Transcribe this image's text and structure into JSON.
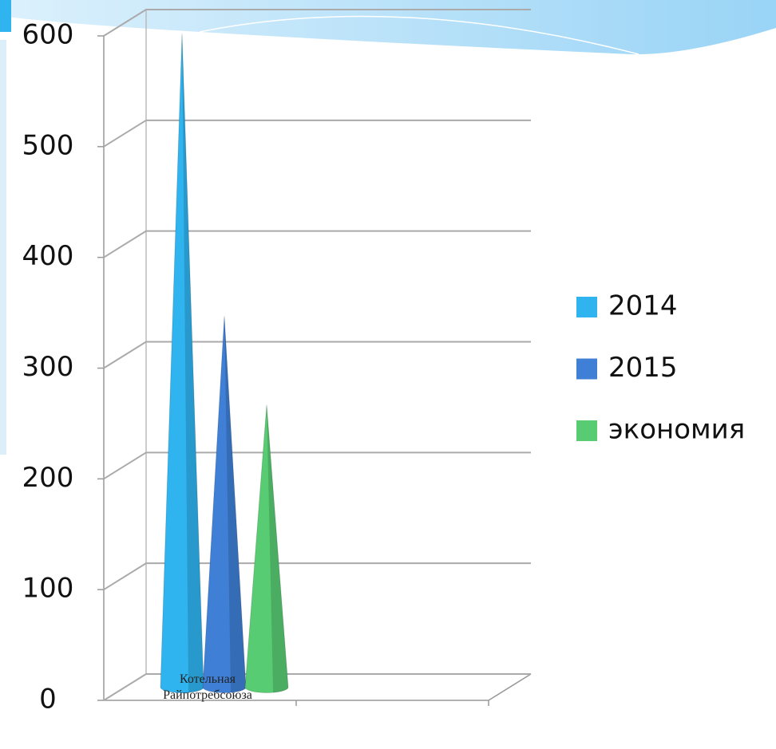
{
  "chart_data": {
    "type": "cone",
    "categories": [
      "Котельная Райпотребсоюза"
    ],
    "series": [
      {
        "name": "2014",
        "color": "#2fb4f0",
        "values": [
          590
        ]
      },
      {
        "name": "2015",
        "color": "#3f7fd6",
        "values": [
          335
        ]
      },
      {
        "name": "экономия",
        "color": "#58cc72",
        "values": [
          255
        ]
      }
    ],
    "ylim": [
      0,
      600
    ],
    "yticks": [
      0,
      100,
      200,
      300,
      400,
      500,
      600
    ],
    "grid": true,
    "legend": "right"
  }
}
